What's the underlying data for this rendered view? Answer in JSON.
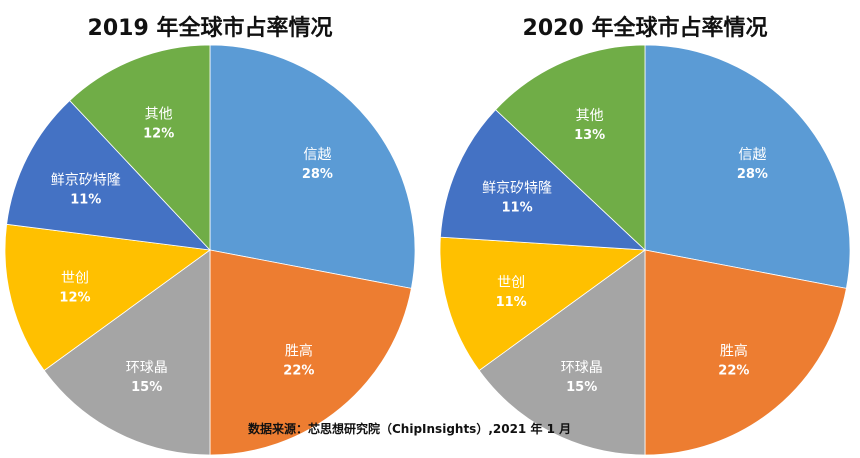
{
  "chart_data": [
    {
      "type": "pie",
      "title": "2019 年全球市占率情况",
      "slices": [
        {
          "label": "信越",
          "value": 28,
          "value_label": "28%",
          "color": "#5b9bd5"
        },
        {
          "label": "胜高",
          "value": 22,
          "value_label": "22%",
          "color": "#ed7d31"
        },
        {
          "label": "环球晶",
          "value": 15,
          "value_label": "15%",
          "color": "#a5a5a5"
        },
        {
          "label": "世创",
          "value": 12,
          "value_label": "12%",
          "color": "#ffc000"
        },
        {
          "label": "鲜京矽特隆",
          "value": 11,
          "value_label": "11%",
          "color": "#4472c4"
        },
        {
          "label": "其他",
          "value": 12,
          "value_label": "12%",
          "color": "#70ad47"
        }
      ]
    },
    {
      "type": "pie",
      "title": "2020 年全球市占率情况",
      "slices": [
        {
          "label": "信越",
          "value": 28,
          "value_label": "28%",
          "color": "#5b9bd5"
        },
        {
          "label": "胜高",
          "value": 22,
          "value_label": "22%",
          "color": "#ed7d31"
        },
        {
          "label": "环球晶",
          "value": 15,
          "value_label": "15%",
          "color": "#a5a5a5"
        },
        {
          "label": "世创",
          "value": 11,
          "value_label": "11%",
          "color": "#ffc000"
        },
        {
          "label": "鲜京矽特隆",
          "value": 11,
          "value_label": "11%",
          "color": "#4472c4"
        },
        {
          "label": "其他",
          "value": 13,
          "value_label": "13%",
          "color": "#70ad47"
        }
      ]
    }
  ],
  "source_note": "数据来源：芯思想研究院（ChipInsights）,2021 年 1 月"
}
